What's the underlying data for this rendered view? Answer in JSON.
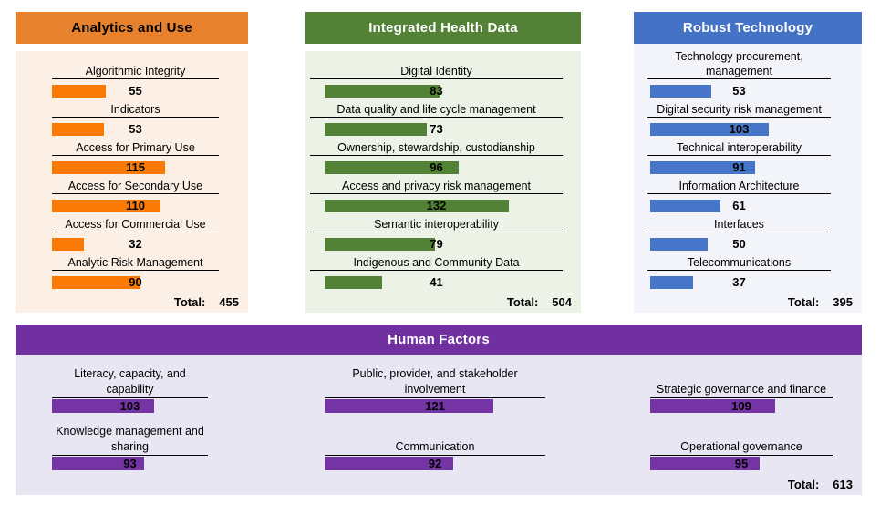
{
  "chart_data": [
    {
      "type": "bar",
      "orientation": "horizontal",
      "title": "Analytics and Use",
      "categories": [
        "Algorithmic Integrity",
        "Indicators",
        "Access for Primary Use",
        "Access for Secondary Use",
        "Access for Commercial Use",
        "Analytic Risk Management"
      ],
      "values": [
        55,
        53,
        115,
        110,
        32,
        90
      ],
      "total_label": "Total:",
      "total": 455,
      "value_labels": "shown-at-center",
      "header_color": "#E8812D",
      "header_text_color": "#000000",
      "bar_color": "#FA7A05",
      "panel_bg": "#FCEFE5"
    },
    {
      "type": "bar",
      "orientation": "horizontal",
      "title": "Integrated Health Data",
      "categories": [
        "Digital Identity",
        "Data quality and life cycle management",
        "Ownership, stewardship, custodianship",
        "Access and privacy risk management",
        "Semantic interoperability",
        "Indigenous and Community Data"
      ],
      "values": [
        83,
        73,
        96,
        132,
        79,
        41
      ],
      "total_label": "Total:",
      "total": 504,
      "value_labels": "shown-at-center",
      "header_color": "#538135",
      "header_text_color": "#FFFFFF",
      "bar_color": "#538135",
      "panel_bg": "#EDF2E7"
    },
    {
      "type": "bar",
      "orientation": "horizontal",
      "title": "Robust Technology",
      "categories": [
        "Technology procurement, management",
        "Digital security risk management",
        "Technical interoperability",
        "Information Architecture",
        "Interfaces",
        "Telecommunications"
      ],
      "values": [
        53,
        103,
        91,
        61,
        50,
        37
      ],
      "total_label": "Total:",
      "total": 395,
      "value_labels": "shown-at-center",
      "header_color": "#4472C4",
      "header_text_color": "#FFFFFF",
      "bar_color": "#4776C8",
      "panel_bg": "#F2F4F9"
    },
    {
      "type": "bar",
      "orientation": "horizontal",
      "layout": "three-column",
      "title": "Human Factors",
      "categories": [
        "Literacy, capacity, and capability",
        "Knowledge management and sharing",
        "Public, provider, and stakeholder involvement",
        "Communication",
        "Strategic governance and finance",
        "Operational governance"
      ],
      "values": [
        103,
        93,
        121,
        92,
        109,
        95
      ],
      "total_label": "Total:",
      "total": 613,
      "value_labels": "shown-at-center",
      "header_color": "#7030A0",
      "header_text_color": "#FFFFFF",
      "bar_color": "#7434A4",
      "panel_bg": "#E9E6F4"
    }
  ]
}
